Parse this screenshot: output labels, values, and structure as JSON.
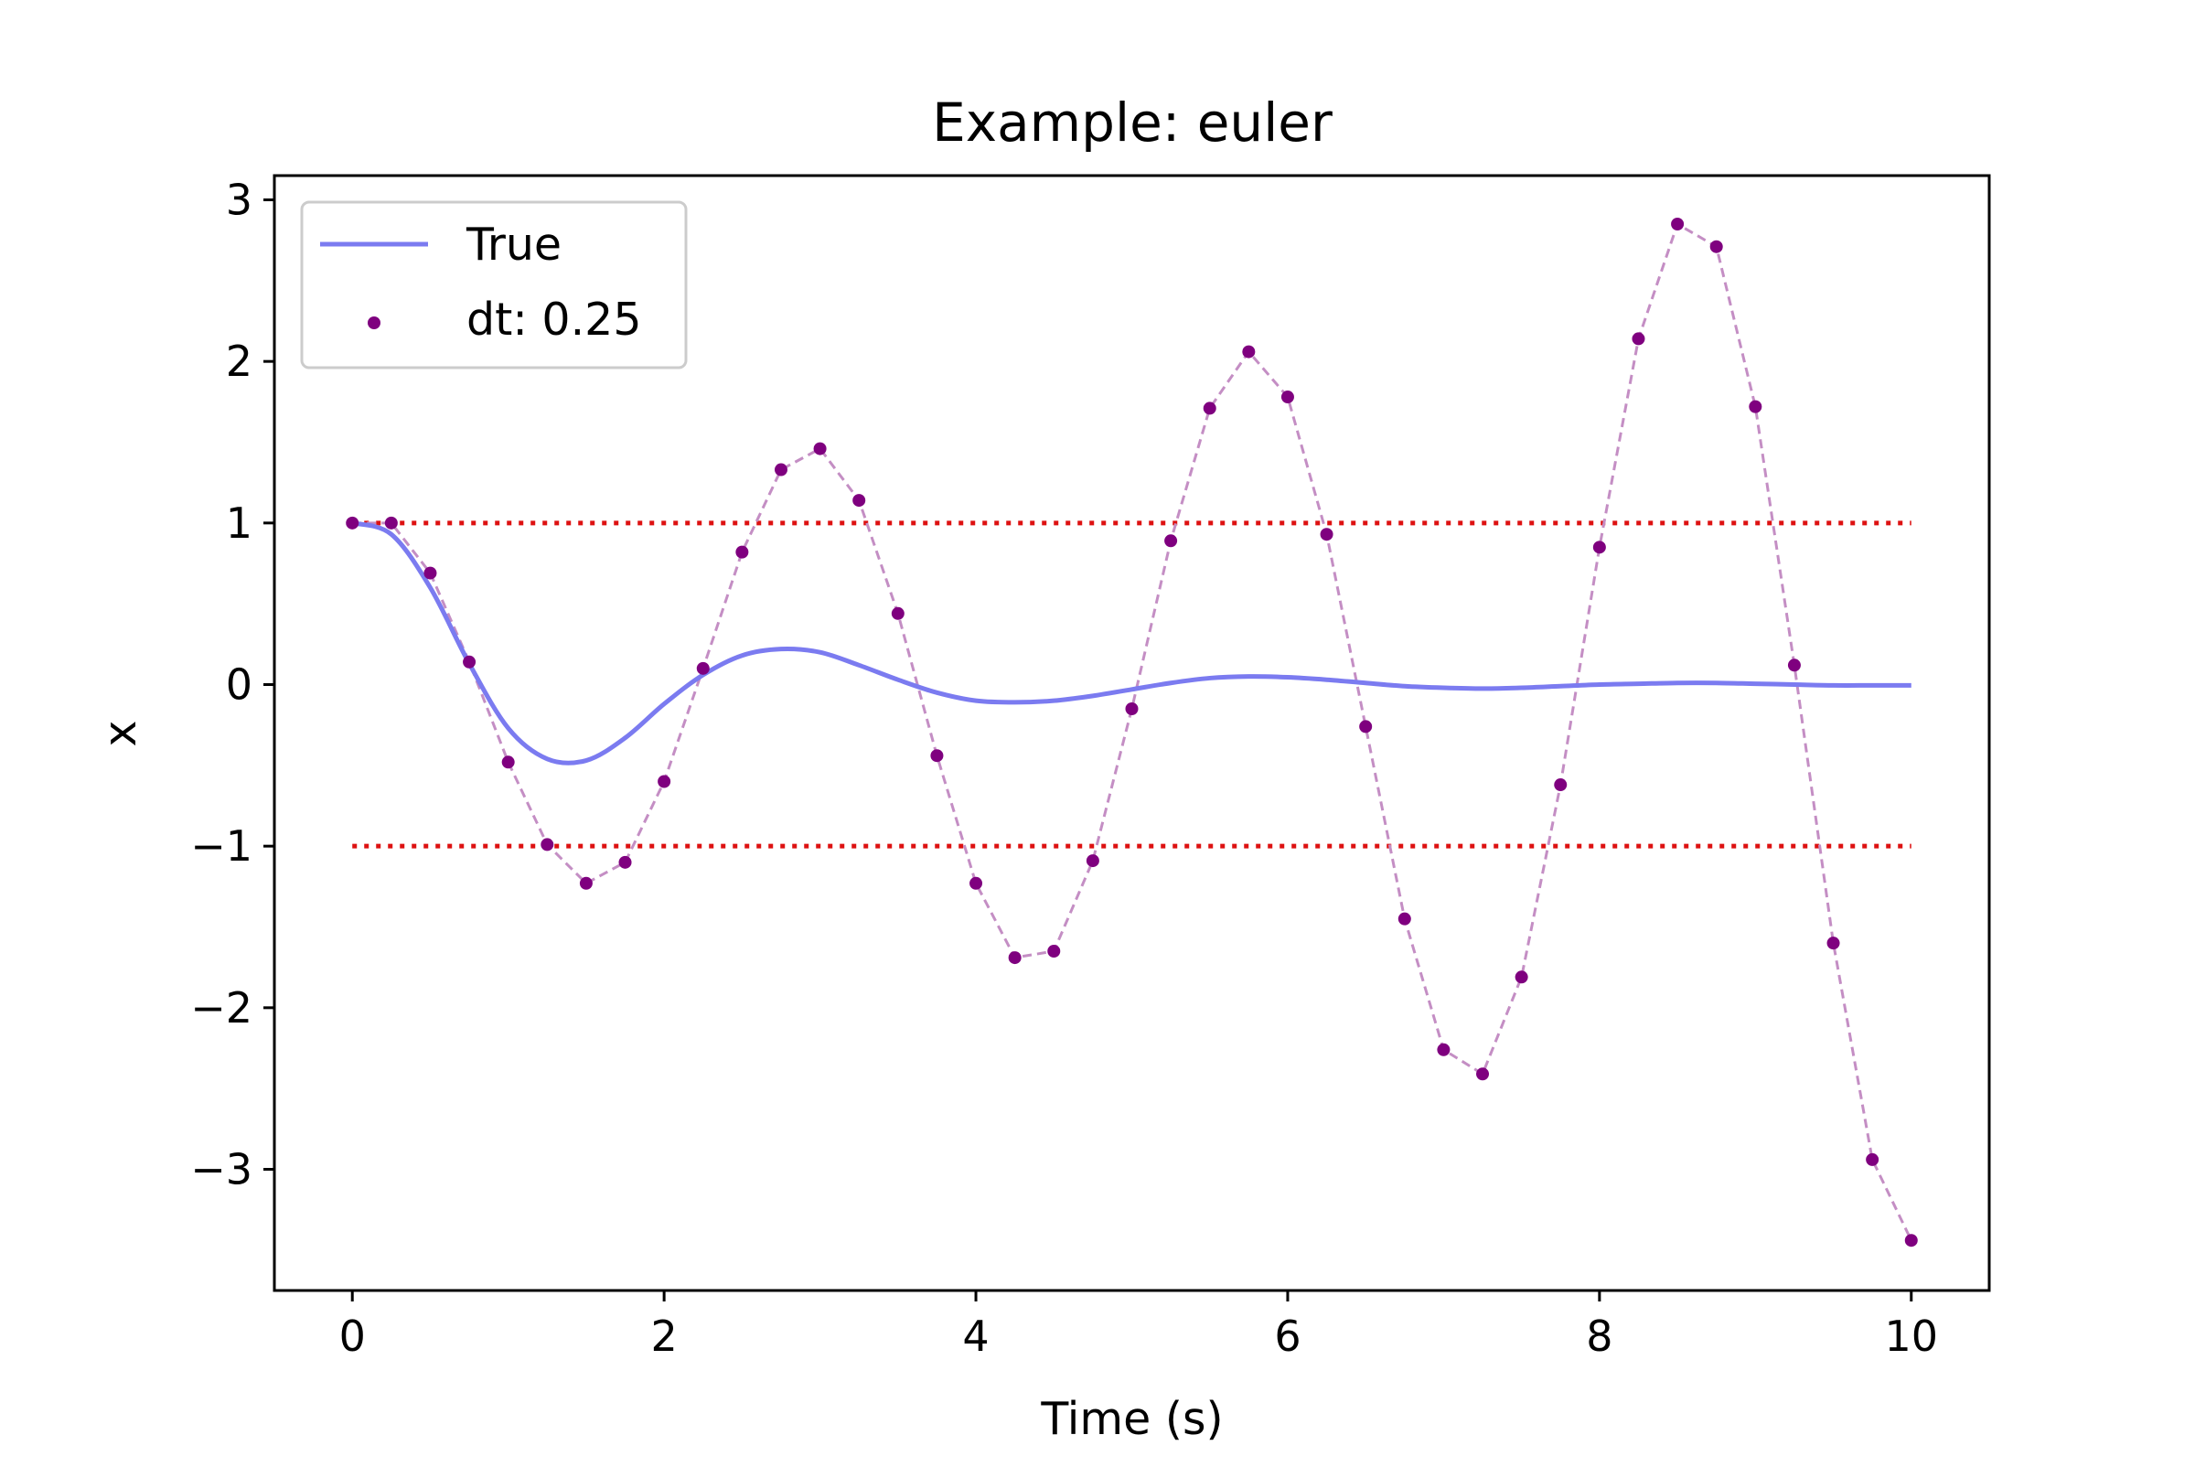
{
  "chart_data": {
    "type": "line",
    "title": "Example: euler",
    "xlabel": "Time (s)",
    "ylabel": "x",
    "xlim": [
      -0.5,
      10.5
    ],
    "ylim": [
      -3.75,
      3.15
    ],
    "x_ticks": [
      0,
      2,
      4,
      6,
      8,
      10
    ],
    "x_tick_labels": [
      "0",
      "2",
      "4",
      "6",
      "8",
      "10"
    ],
    "y_ticks": [
      3,
      2,
      1,
      0,
      -1,
      -2,
      -3
    ],
    "y_tick_labels": [
      "3",
      "2",
      "1",
      "0",
      "−1",
      "−2",
      "−3"
    ],
    "grid": false,
    "legend_position": "upper-left",
    "colors": {
      "true_line": "#7b7bf0",
      "euler_points": "#7f007f",
      "euler_connector": "#c48ec4",
      "reference_lines": "#dd1111",
      "axes": "#000000",
      "legend_border": "#cccccc"
    },
    "series": [
      {
        "name": "True",
        "style": "solid-line",
        "x": [
          0,
          0.25,
          0.5,
          0.75,
          1.0,
          1.25,
          1.5,
          1.75,
          2.0,
          2.25,
          2.5,
          2.75,
          3.0,
          3.25,
          3.5,
          3.75,
          4.0,
          4.25,
          4.5,
          4.75,
          5.0,
          5.25,
          5.5,
          5.75,
          6.0,
          6.25,
          6.5,
          6.75,
          7.0,
          7.25,
          7.5,
          7.75,
          8.0,
          8.25,
          8.5,
          8.75,
          9.0,
          9.25,
          9.5,
          9.75,
          10.0
        ],
        "y": [
          1.0,
          0.93,
          0.6,
          0.13,
          -0.27,
          -0.46,
          -0.47,
          -0.33,
          -0.12,
          0.06,
          0.18,
          0.22,
          0.2,
          0.12,
          0.03,
          -0.05,
          -0.1,
          -0.11,
          -0.1,
          -0.07,
          -0.03,
          0.01,
          0.04,
          0.05,
          0.045,
          0.03,
          0.01,
          -0.01,
          -0.02,
          -0.025,
          -0.02,
          -0.01,
          0.0,
          0.005,
          0.01,
          0.01,
          0.005,
          0.0,
          -0.005,
          -0.005,
          -0.005
        ]
      },
      {
        "name": "dt: 0.25",
        "style": "points-with-dashed-connector",
        "x": [
          0,
          0.25,
          0.5,
          0.75,
          1.0,
          1.25,
          1.5,
          1.75,
          2.0,
          2.25,
          2.5,
          2.75,
          3.0,
          3.25,
          3.5,
          3.75,
          4.0,
          4.25,
          4.5,
          4.75,
          5.0,
          5.25,
          5.5,
          5.75,
          6.0,
          6.25,
          6.5,
          6.75,
          7.0,
          7.25,
          7.5,
          7.75,
          8.0,
          8.25,
          8.5,
          8.75,
          9.0,
          9.25,
          9.5,
          9.75,
          10.0
        ],
        "y": [
          1.0,
          1.0,
          0.69,
          0.14,
          -0.48,
          -0.99,
          -1.23,
          -1.1,
          -0.6,
          0.1,
          0.82,
          1.33,
          1.46,
          1.14,
          0.44,
          -0.44,
          -1.23,
          -1.69,
          -1.65,
          -1.09,
          -0.15,
          0.89,
          1.71,
          2.06,
          1.78,
          0.93,
          -0.26,
          -1.45,
          -2.26,
          -2.41,
          -1.81,
          -0.62,
          0.85,
          2.14,
          2.85,
          2.71,
          1.72,
          0.12,
          -1.6,
          -2.94,
          -3.44
        ]
      }
    ],
    "reference_lines": [
      {
        "y": 1,
        "x_range": [
          0,
          10
        ],
        "style": "dotted"
      },
      {
        "y": -1,
        "x_range": [
          0,
          10
        ],
        "style": "dotted"
      }
    ]
  }
}
